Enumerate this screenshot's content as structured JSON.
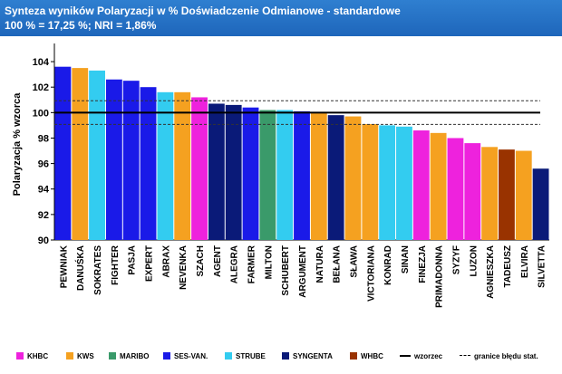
{
  "header": {
    "line1": "Synteza wyników Polaryzacji w %  Doświadczenie Odmianowe - standardowe",
    "line2": "100 % = 17,25 %; NRI = 1,86%"
  },
  "chart_data": {
    "type": "bar",
    "ylabel": "Polaryzacja % wzorca",
    "ylim": [
      90,
      105
    ],
    "yticks": [
      90,
      92,
      94,
      96,
      98,
      100,
      102,
      104
    ],
    "reference_line": 100,
    "error_bounds": [
      99.07,
      100.93
    ],
    "grid": false,
    "legend_position": "bottom",
    "categories": [
      "PEWNIAK",
      "DANUŚKA",
      "SOKRATES",
      "FIGHTER",
      "PASJA",
      "EXPERT",
      "ABRAX",
      "NEVENKA",
      "SZACH",
      "AGENT",
      "ALEGRA",
      "FARMER",
      "MILTON",
      "SCHUBERT",
      "ARGUMENT",
      "NATURA",
      "BEŁANA",
      "SŁAWA",
      "VICTORIANA",
      "KONRAD",
      "SINAN",
      "FINEZJA",
      "PRIMADONNA",
      "SYZYF",
      "LUZON",
      "AGNIESZKA",
      "TADEUSZ",
      "ELVIRA",
      "SILVETTA"
    ],
    "values": [
      103.6,
      103.5,
      103.3,
      102.6,
      102.5,
      102.0,
      101.6,
      101.6,
      101.2,
      100.7,
      100.6,
      100.4,
      100.2,
      100.2,
      100.1,
      100.0,
      99.8,
      99.7,
      99.1,
      99.0,
      98.9,
      98.6,
      98.4,
      98.0,
      97.6,
      97.3,
      97.1,
      97.0,
      95.6
    ],
    "groups": [
      "SES-VAN.",
      "KWS",
      "STRUBE",
      "SES-VAN.",
      "SES-VAN.",
      "SES-VAN.",
      "STRUBE",
      "KWS",
      "KHBC",
      "SYNGENTA",
      "SYNGENTA",
      "SES-VAN.",
      "MARIBO",
      "STRUBE",
      "SES-VAN.",
      "KWS",
      "SYNGENTA",
      "KWS",
      "KWS",
      "STRUBE",
      "STRUBE",
      "KHBC",
      "KWS",
      "KHBC",
      "KHBC",
      "KWS",
      "WHBC",
      "KWS",
      "SYNGENTA"
    ],
    "group_colors": {
      "KHBC": "#ee22dd",
      "KWS": "#f5a120",
      "MARIBO": "#3a9a6a",
      "SES-VAN.": "#1a1ae8",
      "STRUBE": "#33ccf0",
      "SYNGENTA": "#0a1a78",
      "WHBC": "#993300"
    }
  },
  "legend": {
    "items": [
      {
        "label": "KHBC",
        "color": "#ee22dd"
      },
      {
        "label": "KWS",
        "color": "#f5a120"
      },
      {
        "label": "MARIBO",
        "color": "#3a9a6a"
      },
      {
        "label": "SES-VAN.",
        "color": "#1a1ae8"
      },
      {
        "label": "STRUBE",
        "color": "#33ccf0"
      },
      {
        "label": "SYNGENTA",
        "color": "#0a1a78"
      },
      {
        "label": "WHBC",
        "color": "#993300"
      }
    ],
    "wzorzec_label": "wzorzec",
    "bounds_label": "granice błędu stat."
  }
}
